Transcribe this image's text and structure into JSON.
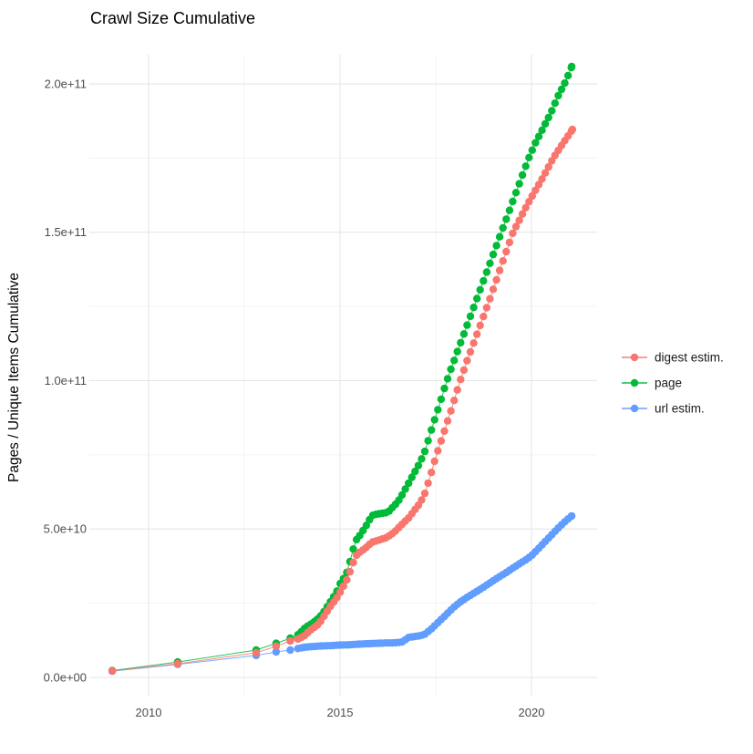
{
  "title": "Crawl Size Cumulative",
  "axes": {
    "y_title": "Pages / Unique Items Cumulative",
    "x_title": "",
    "y_ticks": [
      {
        "label": "2.0e+11",
        "value_e9": 200
      },
      {
        "label": "1.5e+11",
        "value_e9": 150
      },
      {
        "label": "1.0e+11",
        "value_e9": 100
      },
      {
        "label": "5.0e+10",
        "value_e9": 50
      },
      {
        "label": "0.0e+00",
        "value_e9": 0
      }
    ],
    "y_minor_e9": [
      25,
      75,
      125,
      175
    ],
    "x_ticks": [
      {
        "label": "2010",
        "value": 2010
      },
      {
        "label": "2015",
        "value": 2015
      },
      {
        "label": "2020",
        "value": 2020
      }
    ],
    "x_minor": [
      2012.5,
      2017.5
    ]
  },
  "legend": [
    {
      "label": "digest estim.",
      "color": "#F8766D"
    },
    {
      "label": "page",
      "color": "#00BA38"
    },
    {
      "label": "url estim.",
      "color": "#619CFF"
    }
  ],
  "chart_data": {
    "type": "scatter",
    "title": "Crawl Size Cumulative",
    "xlabel": "",
    "ylabel": "Pages / Unique Items Cumulative",
    "value_unit": "1e9 (points given as [year, items_in_billions])",
    "xlim": [
      2008.45,
      2021.7
    ],
    "ylim_e9": [
      0,
      210
    ],
    "grid": "major+minor, light gray on white",
    "legend_position": "right",
    "render": {
      "dense_from": 2013.9,
      "step": 0.085,
      "point_radius": 4.2
    },
    "series": [
      {
        "name": "digest estim.",
        "color": "#F8766D",
        "points": [
          [
            2009.05,
            2.2
          ],
          [
            2010.76,
            4.6
          ],
          [
            2012.81,
            8.3
          ],
          [
            2013.33,
            10.5
          ],
          [
            2013.7,
            12.3
          ],
          [
            2013.92,
            13.0
          ],
          [
            2014.1,
            14.3
          ],
          [
            2014.2,
            15.7
          ],
          [
            2014.4,
            17.5
          ],
          [
            2014.5,
            19.0
          ],
          [
            2014.6,
            21.0
          ],
          [
            2014.75,
            24.0
          ],
          [
            2014.9,
            26.5
          ],
          [
            2015.0,
            28.6
          ],
          [
            2015.1,
            31.0
          ],
          [
            2015.2,
            33.5
          ],
          [
            2015.3,
            37.0
          ],
          [
            2015.4,
            40.8
          ],
          [
            2015.5,
            42.0
          ],
          [
            2015.64,
            43.3
          ],
          [
            2015.83,
            45.5
          ],
          [
            2016.0,
            46.2
          ],
          [
            2016.19,
            47.0
          ],
          [
            2016.31,
            47.9
          ],
          [
            2016.43,
            49.1
          ],
          [
            2016.55,
            50.7
          ],
          [
            2016.67,
            52.2
          ],
          [
            2016.79,
            53.7
          ],
          [
            2016.9,
            55.6
          ],
          [
            2017.07,
            58.4
          ],
          [
            2017.2,
            61.4
          ],
          [
            2017.35,
            67.5
          ],
          [
            2017.52,
            75.0
          ],
          [
            2017.7,
            82.0
          ],
          [
            2017.9,
            90.0
          ],
          [
            2018.14,
            100.0
          ],
          [
            2018.3,
            106.0
          ],
          [
            2018.5,
            113.0
          ],
          [
            2018.7,
            120.0
          ],
          [
            2018.9,
            127.0
          ],
          [
            2019.1,
            134.5
          ],
          [
            2019.3,
            142.0
          ],
          [
            2019.52,
            150.0
          ],
          [
            2019.7,
            154.5
          ],
          [
            2019.9,
            159.5
          ],
          [
            2020.1,
            164.0
          ],
          [
            2020.3,
            168.5
          ],
          [
            2020.57,
            175.0
          ],
          [
            2020.8,
            179.5
          ],
          [
            2021.07,
            184.6
          ]
        ]
      },
      {
        "name": "page",
        "color": "#00BA38",
        "points": [
          [
            2009.05,
            2.3
          ],
          [
            2010.76,
            5.2
          ],
          [
            2012.81,
            9.2
          ],
          [
            2013.33,
            11.5
          ],
          [
            2013.7,
            13.2
          ],
          [
            2013.92,
            14.5
          ],
          [
            2014.1,
            16.9
          ],
          [
            2014.25,
            18.0
          ],
          [
            2014.4,
            19.5
          ],
          [
            2014.5,
            20.8
          ],
          [
            2014.6,
            22.5
          ],
          [
            2014.75,
            25.5
          ],
          [
            2014.9,
            28.5
          ],
          [
            2015.0,
            31.5
          ],
          [
            2015.1,
            33.5
          ],
          [
            2015.2,
            36.0
          ],
          [
            2015.3,
            41.0
          ],
          [
            2015.4,
            46.0
          ],
          [
            2015.5,
            47.5
          ],
          [
            2015.6,
            49.5
          ],
          [
            2015.7,
            51.5
          ],
          [
            2015.83,
            54.5
          ],
          [
            2015.95,
            55.0
          ],
          [
            2016.1,
            55.3
          ],
          [
            2016.25,
            55.6
          ],
          [
            2016.35,
            57.0
          ],
          [
            2016.5,
            59.0
          ],
          [
            2016.6,
            61.0
          ],
          [
            2016.75,
            64.5
          ],
          [
            2016.9,
            68.0
          ],
          [
            2017.05,
            71.5
          ],
          [
            2017.2,
            75.5
          ],
          [
            2017.4,
            84.0
          ],
          [
            2017.6,
            92.0
          ],
          [
            2017.74,
            98.0
          ],
          [
            2017.9,
            104.0
          ],
          [
            2018.1,
            111.0
          ],
          [
            2018.3,
            118.0
          ],
          [
            2018.5,
            125.0
          ],
          [
            2018.7,
            132.0
          ],
          [
            2018.9,
            139.0
          ],
          [
            2019.1,
            146.0
          ],
          [
            2019.3,
            153.0
          ],
          [
            2019.5,
            160.0
          ],
          [
            2019.7,
            167.0
          ],
          [
            2019.93,
            175.0
          ],
          [
            2020.1,
            180.0
          ],
          [
            2020.3,
            185.0
          ],
          [
            2020.5,
            190.0
          ],
          [
            2020.7,
            196.0
          ],
          [
            2020.9,
            201.0
          ],
          [
            2021.05,
            205.8
          ]
        ]
      },
      {
        "name": "url estim.",
        "color": "#619CFF",
        "points": [
          [
            2009.05,
            2.1
          ],
          [
            2010.76,
            4.4
          ],
          [
            2012.81,
            7.4
          ],
          [
            2013.33,
            8.6
          ],
          [
            2013.7,
            9.2
          ],
          [
            2013.92,
            9.8
          ],
          [
            2014.1,
            10.2
          ],
          [
            2014.3,
            10.4
          ],
          [
            2014.5,
            10.6
          ],
          [
            2014.75,
            10.7
          ],
          [
            2015.0,
            10.9
          ],
          [
            2015.25,
            11.0
          ],
          [
            2015.5,
            11.2
          ],
          [
            2015.64,
            11.3
          ],
          [
            2015.83,
            11.4
          ],
          [
            2016.0,
            11.5
          ],
          [
            2016.2,
            11.6
          ],
          [
            2016.4,
            11.6
          ],
          [
            2016.55,
            11.8
          ],
          [
            2016.65,
            12.0
          ],
          [
            2016.76,
            13.4
          ],
          [
            2016.9,
            13.7
          ],
          [
            2017.07,
            14.0
          ],
          [
            2017.2,
            14.4
          ],
          [
            2017.4,
            16.5
          ],
          [
            2017.6,
            19.0
          ],
          [
            2017.8,
            21.5
          ],
          [
            2018.0,
            24.0
          ],
          [
            2018.15,
            25.5
          ],
          [
            2018.3,
            26.8
          ],
          [
            2018.5,
            28.4
          ],
          [
            2018.7,
            30.0
          ],
          [
            2018.9,
            31.7
          ],
          [
            2019.1,
            33.4
          ],
          [
            2019.3,
            35.0
          ],
          [
            2019.5,
            36.7
          ],
          [
            2019.7,
            38.4
          ],
          [
            2019.85,
            39.6
          ],
          [
            2020.0,
            41.0
          ],
          [
            2020.15,
            43.0
          ],
          [
            2020.3,
            45.0
          ],
          [
            2020.45,
            47.0
          ],
          [
            2020.6,
            49.0
          ],
          [
            2020.75,
            51.0
          ],
          [
            2020.9,
            52.8
          ],
          [
            2021.05,
            54.4
          ]
        ]
      }
    ]
  }
}
